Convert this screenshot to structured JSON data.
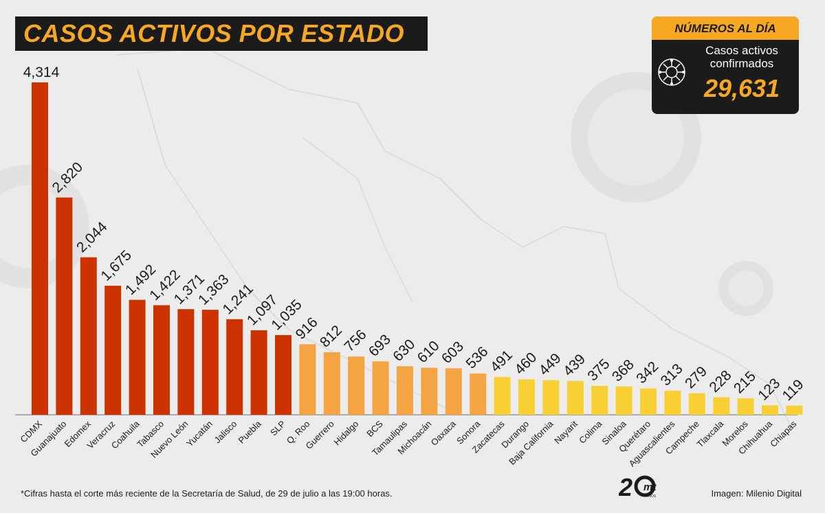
{
  "title": "CASOS ACTIVOS POR ESTADO",
  "summary": {
    "heading": "NÚMEROS AL DÍA",
    "label": "Casos activos confirmados",
    "value": "29,631"
  },
  "footnote": "*Cifras hasta el corte más reciente de la Secretaría de Salud, de 29 de julio a las 19:00 horas.",
  "credit": "Imagen: Milenio Digital",
  "logo": {
    "text": "20mt",
    "sub": "AÑOS"
  },
  "colors": {
    "red": "#cc3300",
    "orange": "#f5a443",
    "yellow": "#f9d033",
    "accent": "#f7a823",
    "dark": "#1b1b1b"
  },
  "chart_data": {
    "type": "bar",
    "title": "CASOS ACTIVOS POR ESTADO",
    "categories": [
      "CDMX",
      "Guanajuato",
      "Edomex",
      "Veracruz",
      "Coahuila",
      "Tabasco",
      "Nuevo León",
      "Yucatán",
      "Jalisco",
      "Puebla",
      "SLP",
      "Q. Roo",
      "Guerrero",
      "Hidalgo",
      "BCS",
      "Tamaulipas",
      "Michoacán",
      "Oaxaca",
      "Sonora",
      "Zacatecas",
      "Durango",
      "Baja California",
      "Nayarit",
      "Colima",
      "Sinaloa",
      "Querétaro",
      "Aguascalientes",
      "Campeche",
      "Tlaxcala",
      "Morelos",
      "Chihuahua",
      "Chiapas"
    ],
    "values": [
      4314,
      2820,
      2044,
      1675,
      1492,
      1422,
      1371,
      1363,
      1241,
      1097,
      1035,
      916,
      812,
      756,
      693,
      630,
      610,
      603,
      536,
      491,
      460,
      449,
      439,
      375,
      368,
      342,
      313,
      279,
      228,
      215,
      123,
      119
    ],
    "labels": [
      "4,314",
      "2,820",
      "2,044",
      "1,675",
      "1,492",
      "1,422",
      "1,371",
      "1,363",
      "1,241",
      "1,097",
      "1,035",
      "916",
      "812",
      "756",
      "693",
      "630",
      "610",
      "603",
      "536",
      "491",
      "460",
      "449",
      "439",
      "375",
      "368",
      "342",
      "313",
      "279",
      "228",
      "215",
      "123",
      "119"
    ],
    "color_groups": [
      "red",
      "red",
      "red",
      "red",
      "red",
      "red",
      "red",
      "red",
      "red",
      "red",
      "red",
      "orange",
      "orange",
      "orange",
      "orange",
      "orange",
      "orange",
      "orange",
      "orange",
      "yellow",
      "yellow",
      "yellow",
      "yellow",
      "yellow",
      "yellow",
      "yellow",
      "yellow",
      "yellow",
      "yellow",
      "yellow",
      "yellow",
      "yellow"
    ],
    "ylim": [
      0,
      4314
    ],
    "grid": false,
    "legend": "none"
  }
}
